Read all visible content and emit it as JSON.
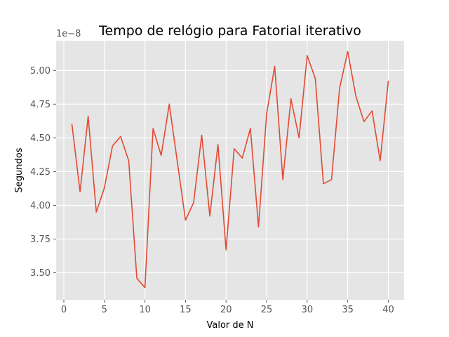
{
  "chart_data": {
    "type": "line",
    "title": "Tempo de relógio para Fatorial iterativo",
    "xlabel": "Valor de N",
    "ylabel": "Segundos",
    "y_offset_label": "1e−8",
    "y_scale": "1e-8",
    "xlim": [
      -0.95,
      41.95
    ],
    "ylim": [
      3.3,
      5.22
    ],
    "xticks": [
      0,
      5,
      10,
      15,
      20,
      25,
      30,
      35,
      40
    ],
    "xtick_labels": [
      "0",
      "5",
      "10",
      "15",
      "20",
      "25",
      "30",
      "35",
      "40"
    ],
    "yticks": [
      3.5,
      3.75,
      4.0,
      4.25,
      4.5,
      4.75,
      5.0
    ],
    "ytick_labels": [
      "3.50",
      "3.75",
      "4.00",
      "4.25",
      "4.50",
      "4.75",
      "5.00"
    ],
    "grid": true,
    "style": "ggplot",
    "line_color": "#E24A33",
    "background_color": "#E5E5E5",
    "x": [
      1,
      2,
      3,
      4,
      5,
      6,
      7,
      8,
      9,
      10,
      11,
      12,
      13,
      14,
      15,
      16,
      17,
      18,
      19,
      20,
      21,
      22,
      23,
      24,
      25,
      26,
      27,
      28,
      29,
      30,
      31,
      32,
      33,
      34,
      35,
      36,
      37,
      38,
      39,
      40
    ],
    "series": [
      {
        "values": [
          4.6,
          4.1,
          4.66,
          3.95,
          4.13,
          4.44,
          4.51,
          4.33,
          3.46,
          3.39,
          4.57,
          4.37,
          4.75,
          4.32,
          3.89,
          4.02,
          4.52,
          3.92,
          4.45,
          3.67,
          4.42,
          4.35,
          4.57,
          3.84,
          4.68,
          5.03,
          4.19,
          4.79,
          4.5,
          5.11,
          4.94,
          4.16,
          4.19,
          4.87,
          5.14,
          4.81,
          4.62,
          4.7,
          4.33,
          4.92
        ]
      }
    ]
  }
}
